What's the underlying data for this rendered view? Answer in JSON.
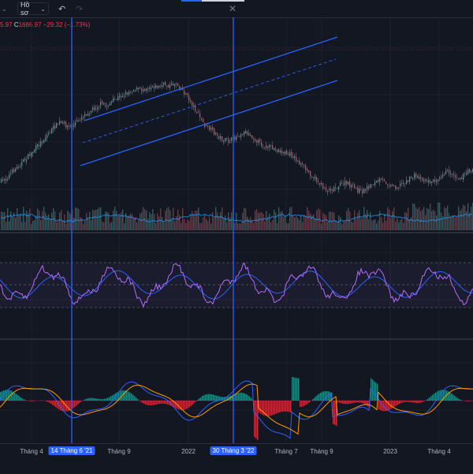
{
  "toolbar": {
    "profile_label": "Hồ sơ",
    "chevron": "chevron-down-icon",
    "undo_icon": "undo-icon",
    "redo_icon": "redo-icon",
    "close_icon": "close-icon"
  },
  "legend": {
    "prefix": "5.97",
    "close_label": "C",
    "close_value": "1666.97",
    "change": "−29.32 (−1.73%)"
  },
  "colors": {
    "background": "#131722",
    "up": "#26a69a",
    "down": "#f23645",
    "drawing": "#2962ff",
    "indicator_1": "#2196f3",
    "indicator_2": "#b36bff",
    "macd_signal": "#ff9800"
  },
  "x_axis": {
    "ticks": [
      "Tháng 4",
      "Tháng 9",
      "2022",
      "Tháng 7",
      "Tháng 9",
      "2023",
      "Tháng 4"
    ],
    "highlighted": [
      "14 Tháng 6 '21",
      "30 Tháng 3 '22"
    ]
  },
  "chart_data": {
    "type": "candlestick",
    "price_close_series": [
      35,
      40,
      48,
      55,
      62,
      70,
      78,
      86,
      95,
      103,
      110,
      106,
      104,
      111,
      118,
      123,
      128,
      133,
      131,
      136,
      141,
      145,
      149,
      152,
      151,
      154,
      156,
      155,
      158,
      156,
      160,
      152,
      142,
      130,
      118,
      105,
      100,
      94,
      88,
      86,
      90,
      95,
      98,
      92,
      86,
      80,
      78,
      76,
      73,
      70,
      68,
      60,
      52,
      45,
      38,
      30,
      24,
      26,
      30,
      33,
      30,
      25,
      22,
      28,
      33,
      36,
      34,
      30,
      28,
      33,
      37,
      42,
      40,
      36,
      34,
      40,
      45,
      47,
      42,
      40,
      46,
      52
    ],
    "drawings": [
      "parallel-channel",
      "vertical-line",
      "vertical-line"
    ],
    "panes": [
      "price-volume",
      "rsi",
      "macd"
    ]
  }
}
